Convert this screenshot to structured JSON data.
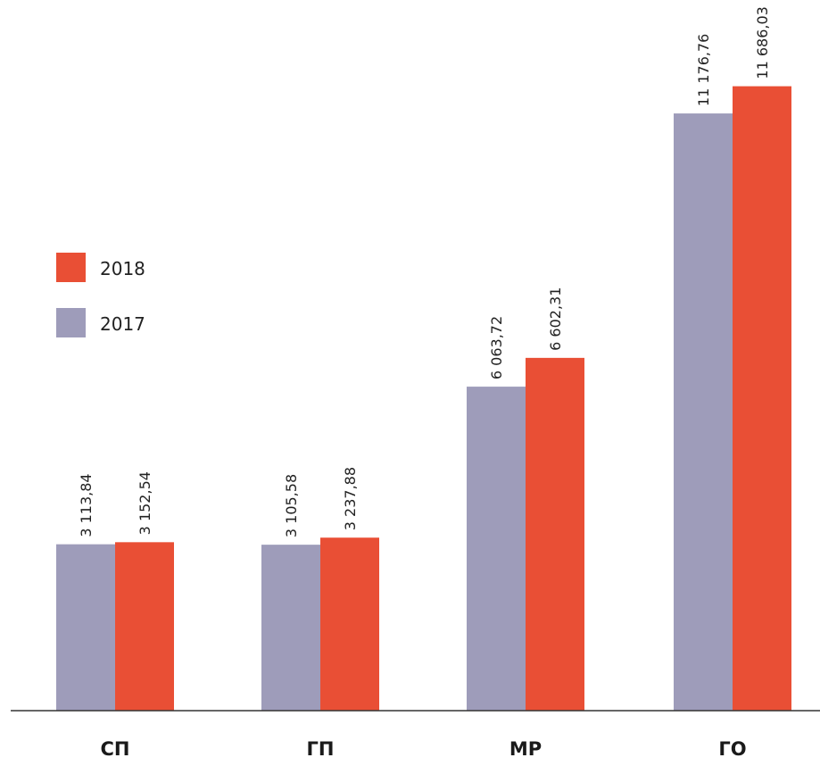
{
  "chart_data": {
    "type": "bar",
    "categories": [
      "СП",
      "ГП",
      "МР",
      "ГО"
    ],
    "series": [
      {
        "name": "2017",
        "values": [
          3113.84,
          3105.58,
          6063.72,
          11176.76
        ],
        "labels": [
          "3 113,84",
          "3 105,58",
          "6 063,72",
          "11 176,76"
        ],
        "color": "#9e9cba"
      },
      {
        "name": "2018",
        "values": [
          3152.54,
          3237.88,
          6602.31,
          11686.03
        ],
        "labels": [
          "3 152,54",
          "3 237,88",
          "6 602,31",
          "11 686,03"
        ],
        "color": "#e94f35"
      }
    ],
    "legend": {
      "position": "left",
      "order": [
        "2018",
        "2017"
      ]
    },
    "ylim": [
      0,
      13300
    ],
    "grid": false,
    "baseline_color": "#333333"
  }
}
